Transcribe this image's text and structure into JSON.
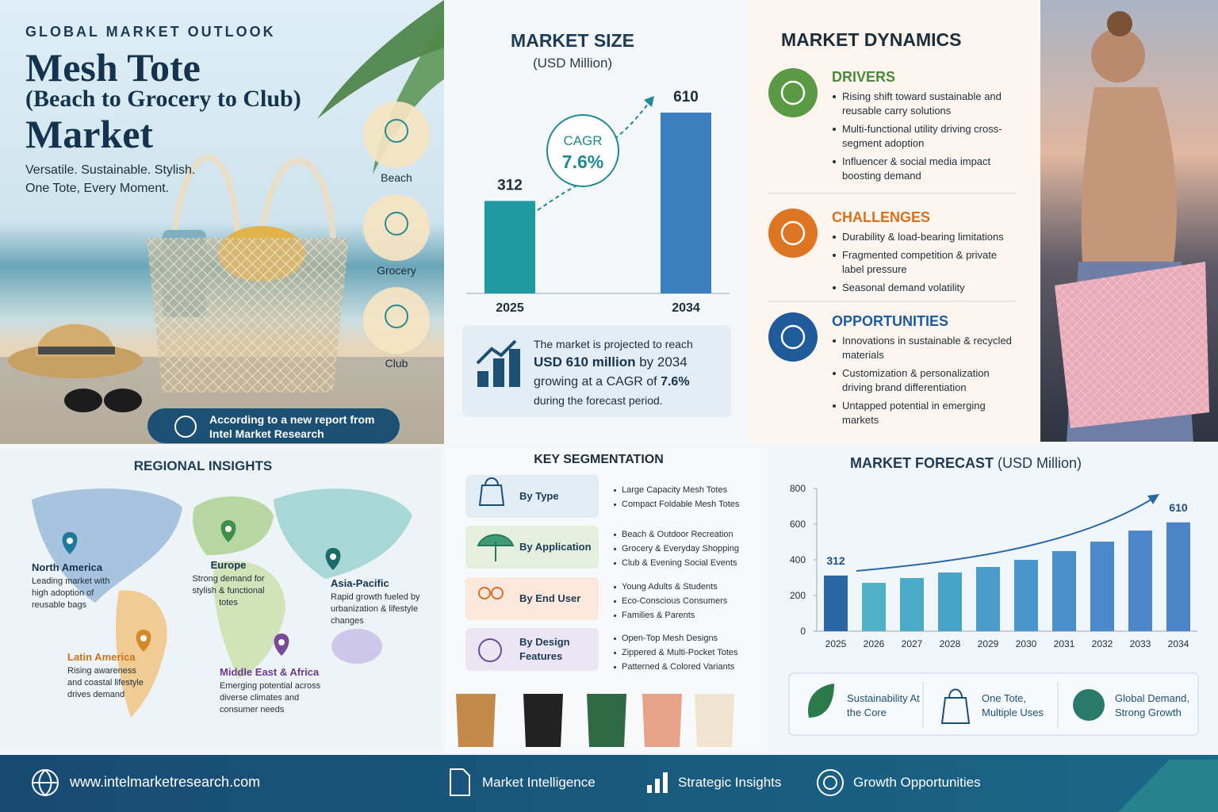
{
  "hero": {
    "kicker": "GLOBAL MARKET OUTLOOK",
    "title_lines": [
      "Mesh Tote",
      "(Beach to Grocery to Club)",
      "Market"
    ],
    "tagline": [
      "Versatile. Sustainable. Stylish.",
      "One Tote, Every Moment."
    ],
    "uses": [
      "Beach",
      "Grocery",
      "Club"
    ],
    "source": [
      "According to a new report from",
      "Intel Market Research"
    ]
  },
  "chart_data": [
    {
      "type": "bar",
      "title": "MARKET SIZE",
      "subtitle": "(USD Million)",
      "categories": [
        "2025",
        "2034"
      ],
      "values": [
        312,
        610
      ],
      "colors": [
        "#1f9aa0",
        "#3a7fc0"
      ],
      "annotation": {
        "label": "CAGR",
        "value": "7.6%"
      }
    },
    {
      "type": "bar",
      "title": "MARKET FORECAST",
      "subtitle": "(USD Million)",
      "categories": [
        "2025",
        "2026",
        "2027",
        "2028",
        "2029",
        "2030",
        "2031",
        "2032",
        "2033",
        "2034"
      ],
      "values": [
        312,
        271,
        298,
        329,
        360,
        400,
        449,
        502,
        564,
        610
      ],
      "value_labels": [
        "312",
        null,
        null,
        null,
        null,
        null,
        null,
        null,
        null,
        "610"
      ],
      "colors": [
        "#2a67a6",
        "#4fb0c8",
        "#4aaac7",
        "#48a3c9",
        "#4a9ccb",
        "#4a95cc",
        "#4a8fcb",
        "#4a8acb",
        "#4c87cb",
        "#4b83c8"
      ],
      "ylim": [
        0,
        800
      ],
      "yticks": [
        0,
        200,
        400,
        600,
        800
      ]
    }
  ],
  "summary": [
    [
      {
        "text": "The market is projected to reach"
      }
    ],
    [
      {
        "text": "USD 610 million",
        "strong": true
      },
      {
        "text": " by 2034"
      }
    ],
    [
      {
        "text": "growing at a CAGR of "
      },
      {
        "text": "7.6%",
        "strong": true
      }
    ],
    [
      {
        "text": "during the forecast period."
      }
    ]
  ],
  "dynamics": {
    "title": "MARKET DYNAMICS",
    "groups": [
      {
        "title": "DRIVERS",
        "items": [
          "Rising shift toward sustainable and reusable carry solutions",
          "Multi-functional utility driving cross-segment adoption",
          "Influencer & social media impact boosting demand"
        ]
      },
      {
        "title": "CHALLENGES",
        "items": [
          "Durability & load-bearing limitations",
          "Fragmented competition & private label pressure",
          "Seasonal demand volatility"
        ]
      },
      {
        "title": "OPPORTUNITIES",
        "items": [
          "Innovations in sustainable & recycled materials",
          "Customization & personalization driving brand differentiation",
          "Untapped potential in emerging markets"
        ]
      }
    ]
  },
  "regional": {
    "title": "REGIONAL INSIGHTS",
    "regions": [
      {
        "name": "North America",
        "text": "Leading market with high adoption of reusable bags"
      },
      {
        "name": "Europe",
        "text": "Strong demand for stylish & functional totes"
      },
      {
        "name": "Asia-Pacific",
        "text": "Rapid growth fueled by urbanization & lifestyle changes"
      },
      {
        "name": "Latin America",
        "text": "Rising awareness and coastal lifestyle drives demand"
      },
      {
        "name": "Middle East & Africa",
        "text": "Emerging potential across diverse climates and consumer needs"
      }
    ]
  },
  "segmentation": {
    "title": "KEY SEGMENTATION",
    "segments": [
      {
        "label": "By Type",
        "items": [
          "Large Capacity Mesh Totes",
          "Compact Foldable Mesh Totes"
        ]
      },
      {
        "label": "By Application",
        "items": [
          "Beach & Outdoor Recreation",
          "Grocery & Everyday Shopping",
          "Club & Evening Social Events"
        ]
      },
      {
        "label": "By End User",
        "items": [
          "Young Adults & Students",
          "Eco-Conscious Consumers",
          "Families & Parents"
        ]
      },
      {
        "label": "By Design Features",
        "items": [
          "Open-Top Mesh Designs",
          "Zippered & Multi-Pocket Totes",
          "Patterned & Colored Variants"
        ]
      }
    ]
  },
  "highlights": [
    "Sustainability At the Core",
    "One Tote, Multiple Uses",
    "Global Demand, Strong Growth"
  ],
  "footer": {
    "url": "www.intelmarketresearch.com",
    "items": [
      "Market Intelligence",
      "Strategic Insights",
      "Growth Opportunities"
    ]
  }
}
